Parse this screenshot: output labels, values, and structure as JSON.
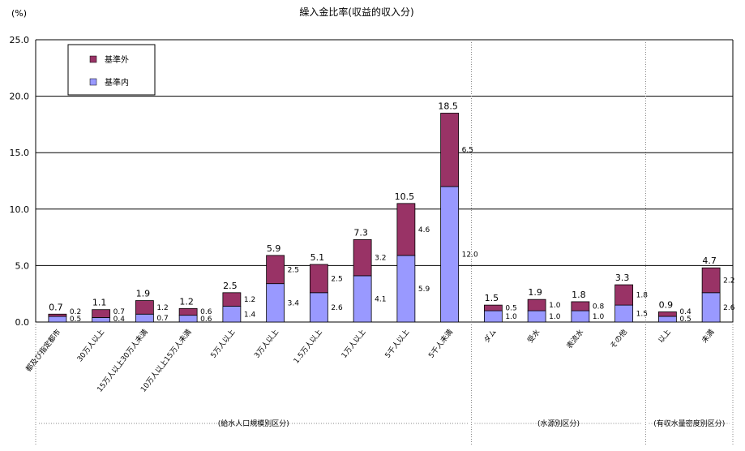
{
  "chart_data": {
    "type": "bar",
    "stacked": true,
    "title": "繰入金比率(収益的収入分)",
    "ylabel": "(%)",
    "ylim": [
      0,
      25
    ],
    "yticks": [
      "0.0",
      "5.0",
      "10.0",
      "15.0",
      "20.0",
      "25.0"
    ],
    "grid": true,
    "legend_position": "top-left",
    "categories": [
      "都及び指定都市",
      "30万人以上",
      "15万人以上30万人未満",
      "10万人以上15万人未満",
      "5万人以上",
      "3万人以上",
      "1.5万人以上",
      "1万人以上",
      "5千人以上",
      "5千人未満",
      "ダム",
      "受水",
      "表流水",
      "その他",
      "以上",
      "未満"
    ],
    "totals": [
      "0.7",
      "1.1",
      "1.9",
      "1.2",
      "2.5",
      "5.9",
      "5.1",
      "7.3",
      "10.5",
      "18.5",
      "1.5",
      "1.9",
      "1.8",
      "3.3",
      "0.9",
      "4.7"
    ],
    "series": [
      {
        "name": "基準内",
        "color": "#9999ff",
        "values": [
          0.5,
          0.4,
          0.7,
          0.6,
          1.4,
          3.4,
          2.6,
          4.1,
          5.9,
          12.0,
          1.0,
          1.0,
          1.0,
          1.5,
          0.5,
          2.6
        ],
        "labels": [
          "0.5",
          "0.4",
          "0.7",
          "0.6",
          "1.4",
          "3.4",
          "2.6",
          "4.1",
          "5.9",
          "12.0",
          "1.0",
          "1.0",
          "1.0",
          "1.5",
          "0.5",
          "2.6"
        ]
      },
      {
        "name": "基準外",
        "color": "#993366",
        "values": [
          0.2,
          0.7,
          1.2,
          0.6,
          1.2,
          2.5,
          2.5,
          3.2,
          4.6,
          6.5,
          0.5,
          1.0,
          0.8,
          1.8,
          0.4,
          2.2
        ],
        "labels": [
          "0.2",
          "0.7",
          "1.2",
          "0.6",
          "1.2",
          "2.5",
          "2.5",
          "3.2",
          "4.6",
          "6.5",
          "0.5",
          "1.0",
          "0.8",
          "1.8",
          "0.4",
          "2.2"
        ]
      }
    ],
    "groups": [
      {
        "label": "(給水人口規模別区分)",
        "start": 0,
        "end": 9
      },
      {
        "label": "(水源別区分)",
        "start": 10,
        "end": 13
      },
      {
        "label": "(有収水量密度別区分)",
        "start": 14,
        "end": 15
      }
    ]
  }
}
